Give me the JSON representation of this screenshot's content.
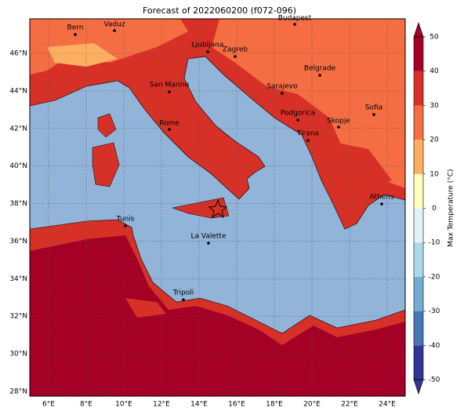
{
  "title": "Forecast of 2022060200 (f072-096)",
  "map": {
    "lon_ticks": [
      {
        "value": 6,
        "label": "6°E"
      },
      {
        "value": 8,
        "label": "8°E"
      },
      {
        "value": 10,
        "label": "10°E"
      },
      {
        "value": 12,
        "label": "12°E"
      },
      {
        "value": 14,
        "label": "14°E"
      },
      {
        "value": 16,
        "label": "16°E"
      },
      {
        "value": 18,
        "label": "18°E"
      },
      {
        "value": 20,
        "label": "20°E"
      },
      {
        "value": 22,
        "label": "22°E"
      },
      {
        "value": 24,
        "label": "24°E"
      }
    ],
    "lat_ticks": [
      {
        "value": 28,
        "label": "28°N"
      },
      {
        "value": 30,
        "label": "30°N"
      },
      {
        "value": 32,
        "label": "32°N"
      },
      {
        "value": 34,
        "label": "34°N"
      },
      {
        "value": 36,
        "label": "36°N"
      },
      {
        "value": 38,
        "label": "38°N"
      },
      {
        "value": 40,
        "label": "40°N"
      },
      {
        "value": 42,
        "label": "42°N"
      },
      {
        "value": 44,
        "label": "44°N"
      },
      {
        "value": 46,
        "label": "46°N"
      }
    ],
    "cities": [
      "Bern",
      "Vaduz",
      "Budapest",
      "Ljubljana",
      "Zagreb",
      "Belgrade",
      "San Marino",
      "Sarajevo",
      "Podgorica",
      "Sofia",
      "Skopje",
      "Tirana",
      "Rome",
      "Athens",
      "Tunis",
      "La Valette",
      "Tripoli"
    ]
  },
  "colorbar": {
    "label": "Max Temperature (°C)",
    "ticks": [
      -50,
      -40,
      -30,
      -20,
      -10,
      0,
      10,
      20,
      30,
      40,
      50
    ],
    "colors": [
      "#313695",
      "#4575b4",
      "#74add1",
      "#abd9e9",
      "#e0f3f8",
      "#ffffbf",
      "#fdae61",
      "#f46d43",
      "#d73027",
      "#a50026"
    ]
  }
}
